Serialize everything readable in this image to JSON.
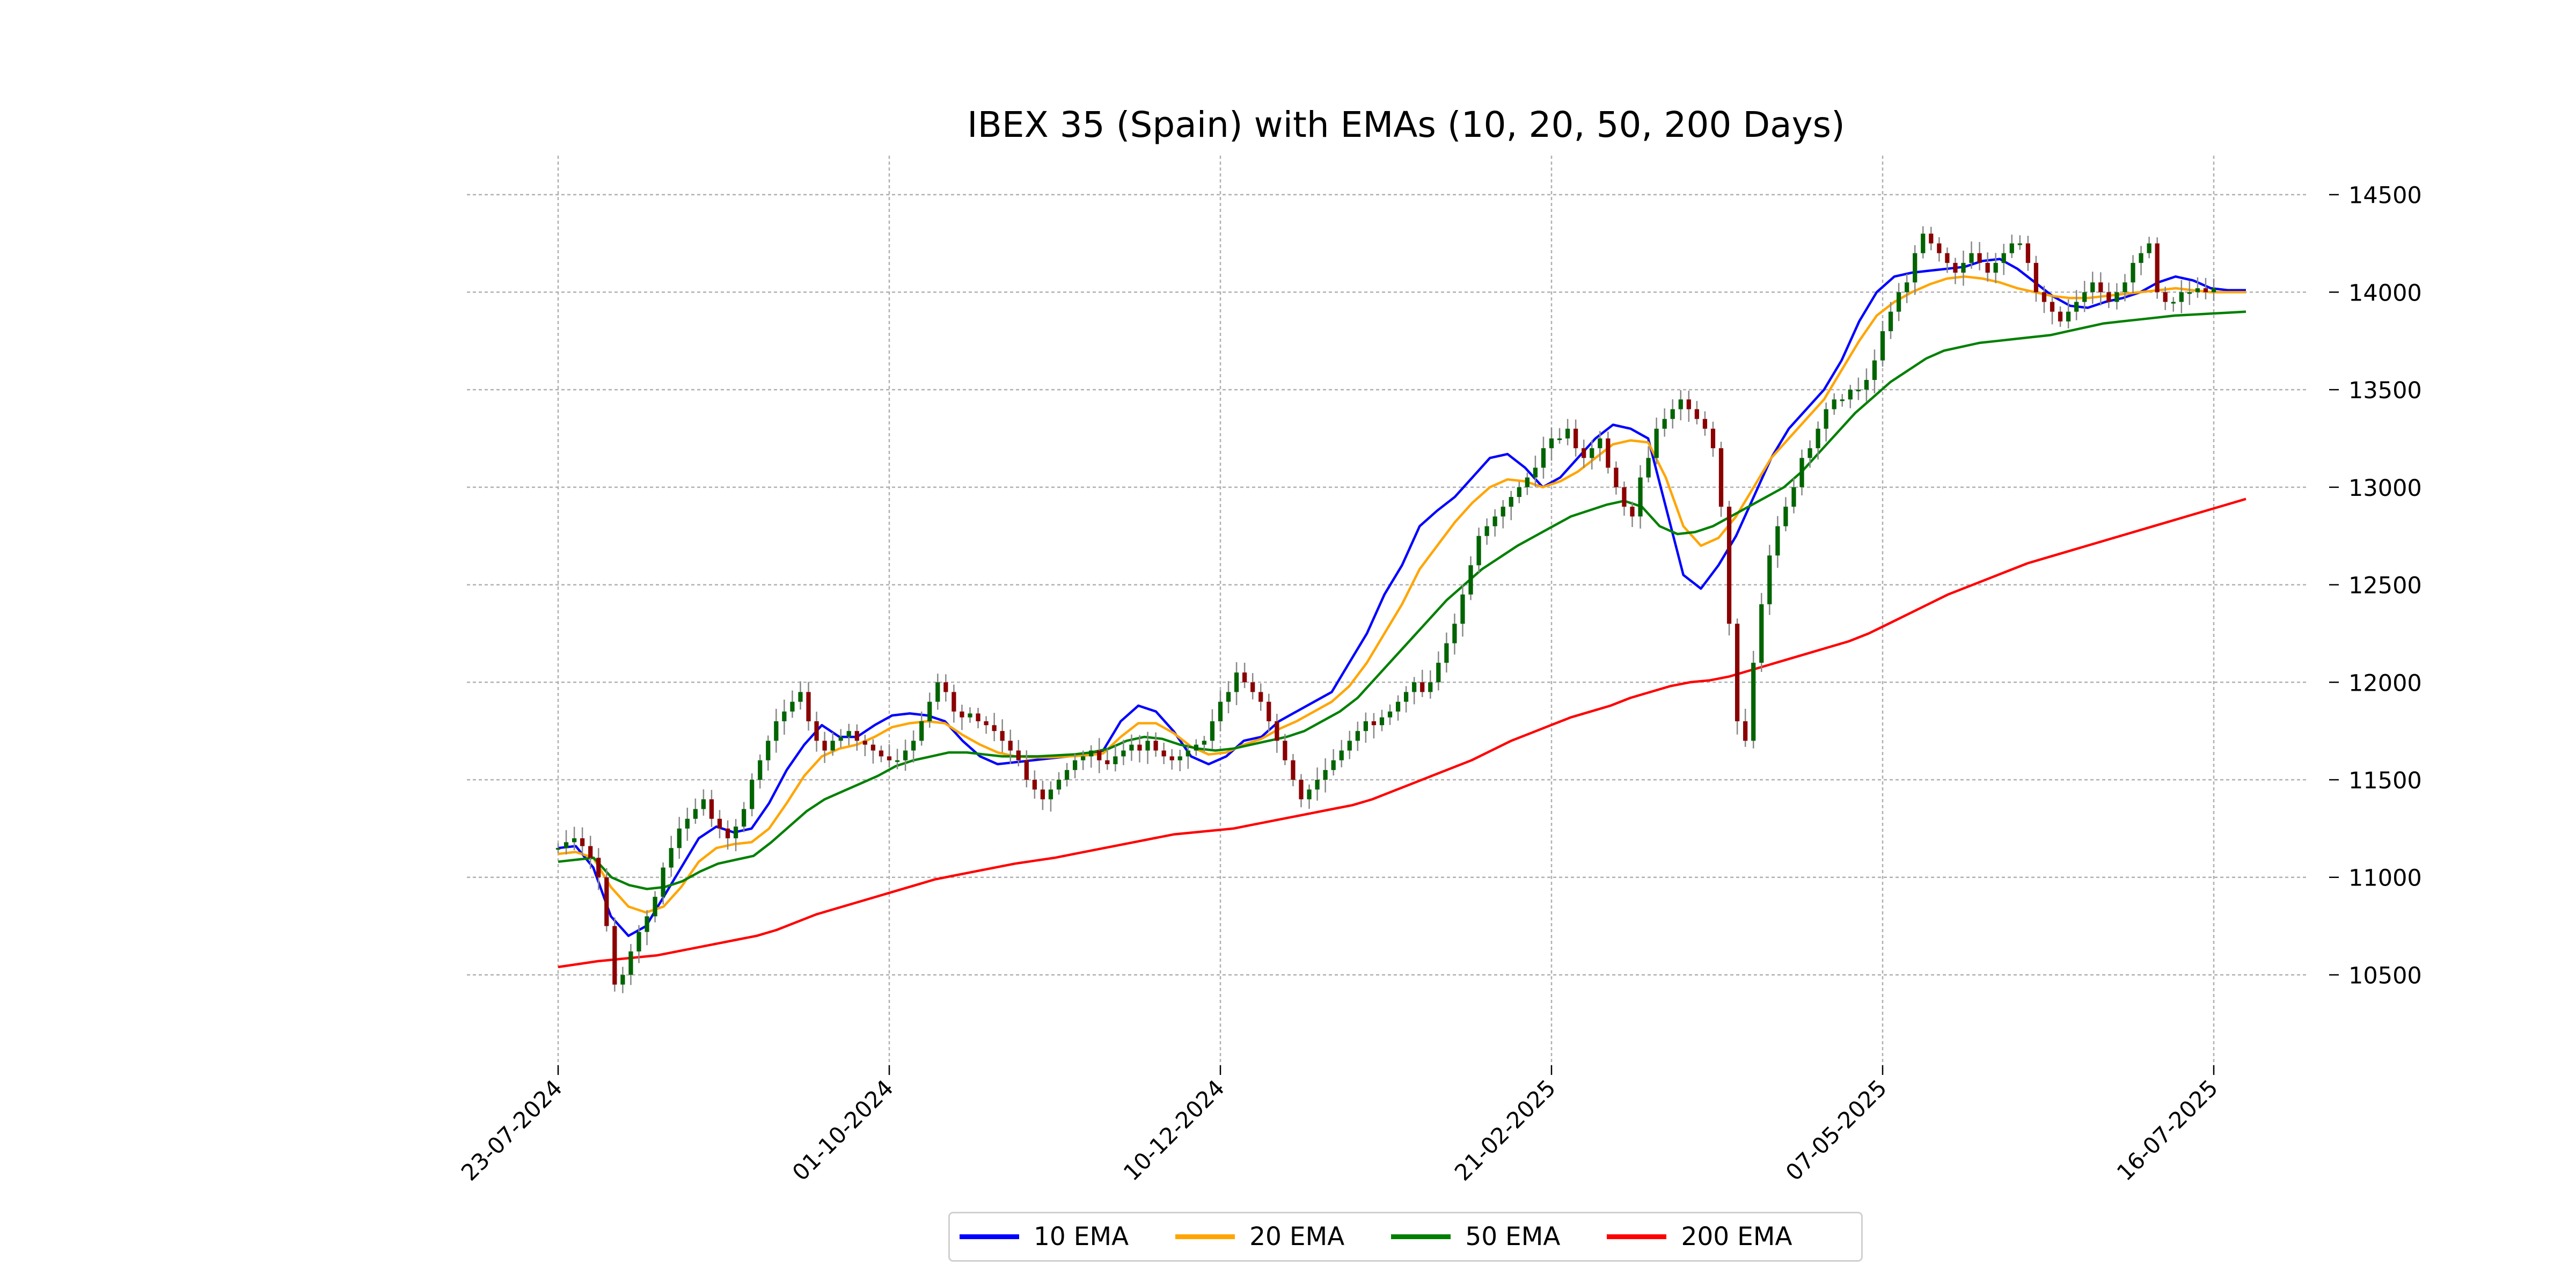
{
  "chart_data": {
    "type": "candlestick",
    "title": "IBEX 35 (Spain) with EMAs (10, 20, 50, 200 Days)",
    "xlabel": "",
    "ylabel": "",
    "x_tick_labels": [
      "23-07-2024",
      "01-10-2024",
      "10-12-2024",
      "21-02-2025",
      "07-05-2025",
      "16-07-2025"
    ],
    "y_ticks": [
      10500,
      11000,
      11500,
      12000,
      12500,
      13000,
      13500,
      14000,
      14500
    ],
    "ylim": [
      10050,
      14700
    ],
    "grid": true,
    "y_axis_side": "right",
    "legend_position": "bottom-center",
    "colors": {
      "up": "#006400",
      "down": "#8b0000",
      "ema10": "#0000ff",
      "ema20": "#ffa500",
      "ema50": "#008000",
      "ema200": "#ff0000",
      "grid": "#b0b0b0"
    },
    "ohlc_summary": {
      "closes_by_period": [
        [
          11150,
          11180,
          11200,
          11160,
          11100,
          11000,
          10750,
          10450,
          10500,
          10620,
          10720,
          10800,
          10900,
          11050,
          11150,
          11250,
          11300,
          11350,
          11400,
          11300,
          11250,
          11200,
          11260,
          11350,
          11500,
          11600,
          11700,
          11800,
          11850,
          11900,
          11950,
          11800,
          11700,
          11650,
          11700,
          11720,
          11750,
          11700,
          11680,
          11650,
          11620,
          11600
        ],
        [
          11600,
          11650,
          11700,
          11800,
          11900,
          12000,
          11950,
          11850,
          11820,
          11840,
          11800,
          11780,
          11750,
          11700,
          11650,
          11600,
          11500,
          11450,
          11400,
          11450,
          11500,
          11550,
          11600,
          11620,
          11650,
          11600,
          11580,
          11620,
          11650,
          11680,
          11650,
          11700,
          11650,
          11620,
          11600,
          11620,
          11650,
          11680,
          11700,
          11800,
          11900,
          11950
        ],
        [
          12050,
          12000,
          11950,
          11900,
          11800,
          11700,
          11600,
          11500,
          11400,
          11450,
          11500,
          11550,
          11600,
          11650,
          11700,
          11750,
          11800,
          11780,
          11820,
          11850,
          11900,
          11950,
          12000,
          11950,
          12000,
          12100,
          12200,
          12300,
          12450,
          12600,
          12750,
          12800,
          12850,
          12900,
          12950,
          13000,
          13050,
          13100,
          13200,
          13250,
          13250,
          13300
        ],
        [
          13200,
          13150,
          13200,
          13250,
          13100,
          13000,
          12900,
          12850,
          13050,
          13150,
          13300,
          13350,
          13400,
          13450,
          13400,
          13350,
          13300,
          13200,
          12900,
          12300,
          11800,
          11700,
          12100,
          12400,
          12650,
          12800,
          12900,
          13000,
          13150,
          13200,
          13300,
          13400,
          13450,
          13450,
          13500,
          13500,
          13550,
          13650,
          13800,
          13900,
          14000,
          14050
        ],
        [
          14200,
          14300,
          14250,
          14200,
          14150,
          14100,
          14150,
          14200,
          14150,
          14100,
          14150,
          14200,
          14250,
          14250,
          14150,
          14000,
          13950,
          13900,
          13850,
          13900,
          13950,
          14000,
          14050,
          14000,
          13950,
          14000,
          14050,
          14150,
          14200,
          14250,
          14000,
          13950,
          13950,
          14000,
          14000,
          14020,
          14000,
          14020
        ]
      ]
    },
    "series": [
      {
        "name": "10 EMA",
        "values": [
          11150,
          11160,
          11050,
          10800,
          10700,
          10750,
          10900,
          11050,
          11200,
          11260,
          11230,
          11250,
          11380,
          11550,
          11680,
          11780,
          11720,
          11720,
          11780,
          11830,
          11840,
          11830,
          11800,
          11700,
          11620,
          11580,
          11590,
          11600,
          11610,
          11620,
          11630,
          11650,
          11800,
          11880,
          11850,
          11750,
          11620,
          11580,
          11620,
          11700,
          11720,
          11800,
          11850,
          11900,
          11950,
          12100,
          12250,
          12450,
          12600,
          12800,
          12880,
          12950,
          13050,
          13150,
          13170,
          13100,
          13000,
          13050,
          13150,
          13250,
          13320,
          13300,
          13250,
          12900,
          12550,
          12480,
          12600,
          12750,
          12950,
          13150,
          13300,
          13400,
          13500,
          13650,
          13850,
          14000,
          14080,
          14100,
          14110,
          14120,
          14130,
          14160,
          14170,
          14120,
          14050,
          13980,
          13930,
          13920,
          13950,
          13970,
          14000,
          14050,
          14080,
          14060,
          14020,
          14010,
          14010
        ]
      },
      {
        "name": "20 EMA",
        "values": [
          11120,
          11130,
          11100,
          10950,
          10850,
          10820,
          10850,
          10950,
          11080,
          11150,
          11170,
          11180,
          11250,
          11380,
          11520,
          11620,
          11660,
          11680,
          11720,
          11770,
          11790,
          11800,
          11790,
          11730,
          11680,
          11640,
          11620,
          11615,
          11615,
          11620,
          11625,
          11635,
          11720,
          11790,
          11790,
          11740,
          11670,
          11630,
          11640,
          11680,
          11710,
          11760,
          11800,
          11850,
          11900,
          11980,
          12100,
          12250,
          12400,
          12580,
          12700,
          12820,
          12920,
          13000,
          13040,
          13030,
          13000,
          13030,
          13080,
          13150,
          13220,
          13240,
          13230,
          13050,
          12800,
          12700,
          12740,
          12850,
          13000,
          13150,
          13250,
          13350,
          13450,
          13600,
          13750,
          13880,
          13950,
          14000,
          14040,
          14070,
          14080,
          14070,
          14050,
          14020,
          14000,
          13980,
          13970,
          13970,
          13980,
          13990,
          14000,
          14010,
          14020,
          14010,
          14000,
          14000,
          14000
        ]
      },
      {
        "name": "50 EMA",
        "values": [
          11080,
          11090,
          11100,
          11000,
          10960,
          10940,
          10950,
          10980,
          11030,
          11070,
          11090,
          11110,
          11180,
          11260,
          11340,
          11400,
          11440,
          11480,
          11520,
          11570,
          11600,
          11620,
          11640,
          11640,
          11630,
          11620,
          11620,
          11620,
          11625,
          11630,
          11640,
          11660,
          11700,
          11720,
          11710,
          11680,
          11660,
          11650,
          11660,
          11680,
          11700,
          11720,
          11750,
          11800,
          11850,
          11920,
          12020,
          12120,
          12220,
          12320,
          12420,
          12500,
          12580,
          12640,
          12700,
          12750,
          12800,
          12850,
          12880,
          12910,
          12930,
          12900,
          12800,
          12760,
          12770,
          12800,
          12850,
          12900,
          12950,
          13000,
          13080,
          13180,
          13280,
          13380,
          13460,
          13540,
          13600,
          13660,
          13700,
          13720,
          13740,
          13750,
          13760,
          13770,
          13780,
          13800,
          13820,
          13840,
          13850,
          13860,
          13870,
          13880,
          13885,
          13890,
          13895,
          13900
        ]
      },
      {
        "name": "200 EMA",
        "values": [
          10540,
          10555,
          10570,
          10580,
          10590,
          10600,
          10620,
          10640,
          10660,
          10680,
          10700,
          10730,
          10770,
          10810,
          10840,
          10870,
          10900,
          10930,
          10960,
          10990,
          11010,
          11030,
          11050,
          11070,
          11085,
          11100,
          11120,
          11140,
          11160,
          11180,
          11200,
          11220,
          11230,
          11240,
          11250,
          11270,
          11290,
          11310,
          11330,
          11350,
          11370,
          11400,
          11440,
          11480,
          11520,
          11560,
          11600,
          11650,
          11700,
          11740,
          11780,
          11820,
          11850,
          11880,
          11920,
          11950,
          11980,
          12000,
          12010,
          12030,
          12060,
          12090,
          12120,
          12150,
          12180,
          12210,
          12250,
          12300,
          12350,
          12400,
          12450,
          12490,
          12530,
          12570,
          12610,
          12640,
          12670,
          12700,
          12730,
          12760,
          12790,
          12820,
          12850,
          12880,
          12910,
          12940
        ]
      }
    ]
  },
  "legend": {
    "items": [
      {
        "label": "10 EMA",
        "color": "#0000ff"
      },
      {
        "label": "20 EMA",
        "color": "#ffa500"
      },
      {
        "label": "50 EMA",
        "color": "#008000"
      },
      {
        "label": "200 EMA",
        "color": "#ff0000"
      }
    ]
  }
}
